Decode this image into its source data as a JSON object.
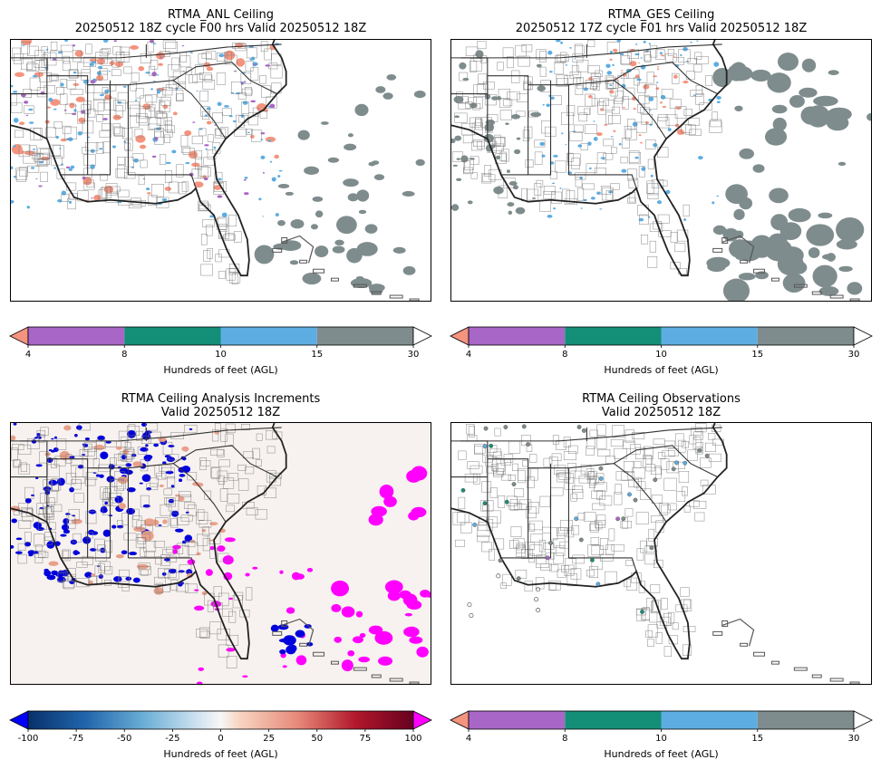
{
  "panels": [
    {
      "title": "RTMA_ANL Ceiling",
      "subtitle": "20250512 18Z cycle F00 hrs Valid 20250512 18Z",
      "colorbar_key": "ceiling"
    },
    {
      "title": "RTMA_GES Ceiling",
      "subtitle": "20250512 17Z cycle F01 hrs Valid 20250512 18Z",
      "colorbar_key": "ceiling"
    },
    {
      "title": "RTMA Ceiling Analysis Increments",
      "subtitle": "Valid 20250512 18Z",
      "colorbar_key": "increment"
    },
    {
      "title": "RTMA Ceiling Observations",
      "subtitle": "Valid 20250512 18Z",
      "colorbar_key": "ceiling"
    }
  ],
  "colorbars": {
    "ceiling": {
      "label": "Hundreds of feet (AGL)",
      "ticks": [
        "4",
        "8",
        "10",
        "15",
        "30"
      ],
      "under_color": "#f4947e",
      "over_color": "#ffffff",
      "bin_colors": [
        "#a866c6",
        "#148f77",
        "#5dade2",
        "#7f8c8d"
      ]
    },
    "increment": {
      "label": "Hundreds of feet (AGL)",
      "ticks": [
        "-100",
        "-75",
        "-50",
        "-25",
        "0",
        "25",
        "50",
        "75",
        "100"
      ],
      "under_color": "#0000ff",
      "over_color": "#ff00ff"
    }
  },
  "map_colors": {
    "land_outline": "#555555",
    "coast": "#222222",
    "cloud_high": "#7f8c8d",
    "cloud_low": "#f4947e",
    "cloud_mid": "#5dade2",
    "cloud_pink": "#a866c6",
    "increment_neg": "#0000dd",
    "increment_pos": "#ff00ff",
    "increment_bg": "#f7f2ef"
  }
}
